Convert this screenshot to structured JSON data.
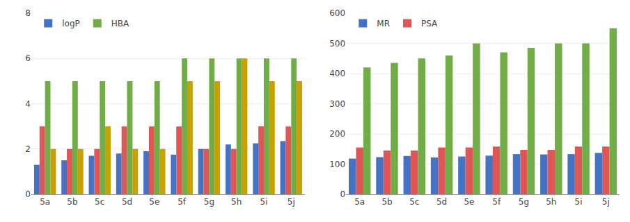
{
  "chart_data": [
    {
      "type": "bar",
      "categories": [
        "5a",
        "5b",
        "5c",
        "5d",
        "5e",
        "5f",
        "5g",
        "5h",
        "5i",
        "5j"
      ],
      "series": [
        {
          "name": "logP",
          "color": "#4472c4",
          "values": [
            1.3,
            1.5,
            1.7,
            1.8,
            1.9,
            1.75,
            2.0,
            2.2,
            2.25,
            2.35
          ]
        },
        {
          "color": "#e05555",
          "values": [
            3,
            2,
            2,
            3,
            3,
            3,
            2,
            2,
            3,
            3
          ]
        },
        {
          "name": "HBA",
          "color": "#70ad47",
          "values": [
            5,
            5,
            5,
            5,
            5,
            6,
            6,
            6,
            6,
            6
          ]
        },
        {
          "color": "#c8a000",
          "values": [
            2,
            2,
            3,
            2,
            2,
            5,
            5,
            6,
            5,
            5
          ]
        }
      ],
      "ylim": [
        0,
        8
      ],
      "yticks": [
        0,
        2,
        4,
        6,
        8
      ],
      "grid": true,
      "legend": "upper left"
    },
    {
      "type": "bar",
      "categories": [
        "5a",
        "5b",
        "5c",
        "5d",
        "5e",
        "5f",
        "5g",
        "5h",
        "5i",
        "5j"
      ],
      "series": [
        {
          "name": "MR",
          "color": "#4472c4",
          "values": [
            118,
            123,
            127,
            122,
            125,
            128,
            133,
            132,
            133,
            137
          ]
        },
        {
          "name": "PSA",
          "color": "#e05555",
          "values": [
            155,
            145,
            145,
            155,
            155,
            158,
            147,
            147,
            158,
            158
          ]
        },
        {
          "color": "#70ad47",
          "values": [
            420,
            435,
            450,
            460,
            500,
            470,
            485,
            500,
            500,
            550
          ]
        }
      ],
      "ylim": [
        0,
        600
      ],
      "yticks": [
        0,
        100,
        200,
        300,
        400,
        500,
        600
      ],
      "grid": true,
      "legend": "upper left"
    }
  ]
}
